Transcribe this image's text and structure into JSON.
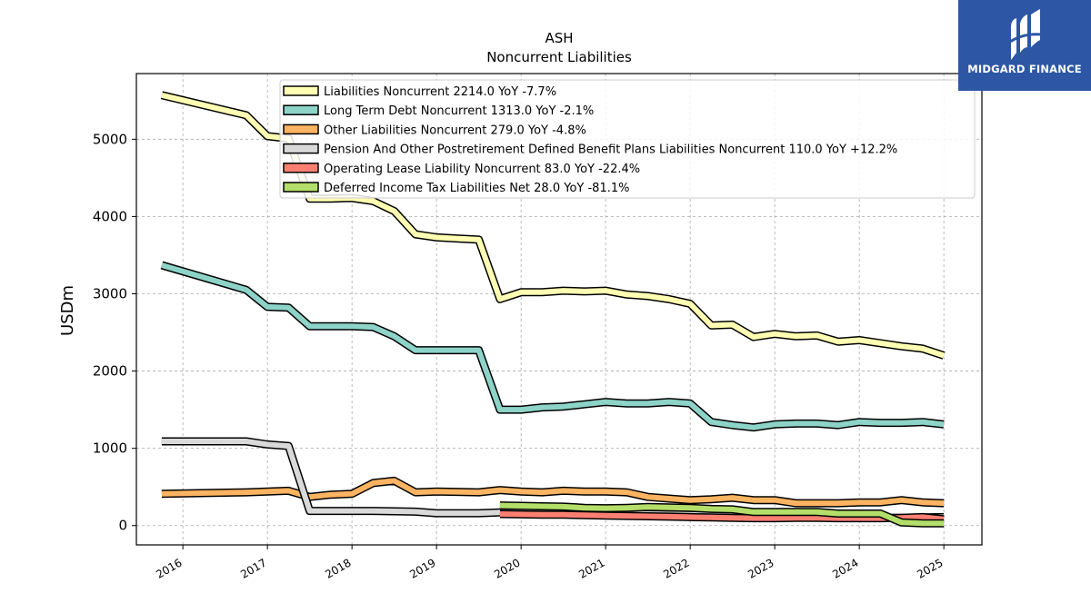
{
  "chart_data": {
    "type": "line",
    "title": "ASH",
    "subtitle": "Noncurrent  Liabilities",
    "ylabel": "USDm",
    "xlabel": "",
    "xlim": [
      2015.45,
      2025.45
    ],
    "ylim": [
      -250,
      5850
    ],
    "yticks": [
      0,
      1000,
      2000,
      3000,
      4000,
      5000
    ],
    "xticks": [
      2016,
      2017,
      2018,
      2019,
      2020,
      2021,
      2022,
      2023,
      2024,
      2025
    ],
    "grid": true,
    "legend_position": "top",
    "series": [
      {
        "name": "Liabilities Noncurrent  2214.0 YoY -7.7%",
        "color": "#ffffb3",
        "points": [
          [
            2015.75,
            5570
          ],
          [
            2016.75,
            5310
          ],
          [
            2017.0,
            5040
          ],
          [
            2017.25,
            5010
          ],
          [
            2017.5,
            4230
          ],
          [
            2017.75,
            4230
          ],
          [
            2018.0,
            4240
          ],
          [
            2018.25,
            4200
          ],
          [
            2018.5,
            4070
          ],
          [
            2018.75,
            3770
          ],
          [
            2019.0,
            3730
          ],
          [
            2019.5,
            3700
          ],
          [
            2019.75,
            2930
          ],
          [
            2020.0,
            3020
          ],
          [
            2020.25,
            3020
          ],
          [
            2020.5,
            3040
          ],
          [
            2020.75,
            3030
          ],
          [
            2021.0,
            3040
          ],
          [
            2021.25,
            2990
          ],
          [
            2021.5,
            2970
          ],
          [
            2021.75,
            2930
          ],
          [
            2022.0,
            2870
          ],
          [
            2022.25,
            2590
          ],
          [
            2022.5,
            2600
          ],
          [
            2022.75,
            2440
          ],
          [
            2023.0,
            2480
          ],
          [
            2023.25,
            2450
          ],
          [
            2023.5,
            2460
          ],
          [
            2023.75,
            2380
          ],
          [
            2024.0,
            2400
          ],
          [
            2024.25,
            2360
          ],
          [
            2024.5,
            2320
          ],
          [
            2024.75,
            2290
          ],
          [
            2025.0,
            2200
          ]
        ]
      },
      {
        "name": "Long Term Debt Noncurrent  1313.0 YoY -2.1%",
        "color": "#8dd3c7",
        "points": [
          [
            2015.75,
            3370
          ],
          [
            2016.75,
            3050
          ],
          [
            2017.0,
            2830
          ],
          [
            2017.25,
            2820
          ],
          [
            2017.5,
            2580
          ],
          [
            2017.75,
            2580
          ],
          [
            2018.0,
            2580
          ],
          [
            2018.25,
            2570
          ],
          [
            2018.5,
            2450
          ],
          [
            2018.75,
            2270
          ],
          [
            2019.0,
            2270
          ],
          [
            2019.5,
            2270
          ],
          [
            2019.75,
            1500
          ],
          [
            2020.0,
            1500
          ],
          [
            2020.25,
            1530
          ],
          [
            2020.5,
            1540
          ],
          [
            2020.75,
            1570
          ],
          [
            2021.0,
            1600
          ],
          [
            2021.25,
            1580
          ],
          [
            2021.5,
            1580
          ],
          [
            2021.75,
            1600
          ],
          [
            2022.0,
            1580
          ],
          [
            2022.25,
            1340
          ],
          [
            2022.5,
            1300
          ],
          [
            2022.75,
            1270
          ],
          [
            2023.0,
            1310
          ],
          [
            2023.25,
            1320
          ],
          [
            2023.5,
            1320
          ],
          [
            2023.75,
            1300
          ],
          [
            2024.0,
            1340
          ],
          [
            2024.25,
            1330
          ],
          [
            2024.5,
            1330
          ],
          [
            2024.75,
            1340
          ],
          [
            2025.0,
            1310
          ]
        ]
      },
      {
        "name": "Other Liabilities Noncurrent  279.0 YoY -4.8%",
        "color": "#fdb462",
        "points": [
          [
            2015.75,
            410
          ],
          [
            2016.75,
            430
          ],
          [
            2017.0,
            440
          ],
          [
            2017.25,
            450
          ],
          [
            2017.5,
            370
          ],
          [
            2017.75,
            400
          ],
          [
            2018.0,
            410
          ],
          [
            2018.25,
            550
          ],
          [
            2018.5,
            580
          ],
          [
            2018.75,
            430
          ],
          [
            2019.0,
            440
          ],
          [
            2019.5,
            430
          ],
          [
            2019.75,
            460
          ],
          [
            2020.0,
            440
          ],
          [
            2020.25,
            430
          ],
          [
            2020.5,
            450
          ],
          [
            2020.75,
            440
          ],
          [
            2021.0,
            440
          ],
          [
            2021.25,
            430
          ],
          [
            2021.5,
            370
          ],
          [
            2021.75,
            350
          ],
          [
            2022.0,
            330
          ],
          [
            2022.25,
            340
          ],
          [
            2022.5,
            360
          ],
          [
            2022.75,
            330
          ],
          [
            2023.0,
            330
          ],
          [
            2023.25,
            290
          ],
          [
            2023.5,
            290
          ],
          [
            2023.75,
            290
          ],
          [
            2024.0,
            300
          ],
          [
            2024.25,
            300
          ],
          [
            2024.5,
            330
          ],
          [
            2024.75,
            300
          ],
          [
            2025.0,
            290
          ]
        ]
      },
      {
        "name": "Pension And Other Postretirement Defined Benefit Plans Liabilities Noncurrent  110.0 YoY +12.2%",
        "color": "#d9d9d9",
        "points": [
          [
            2015.75,
            1090
          ],
          [
            2016.75,
            1090
          ],
          [
            2017.0,
            1050
          ],
          [
            2017.25,
            1030
          ],
          [
            2017.5,
            190
          ],
          [
            2017.75,
            190
          ],
          [
            2018.0,
            190
          ],
          [
            2018.25,
            190
          ],
          [
            2018.5,
            185
          ],
          [
            2018.75,
            180
          ],
          [
            2019.0,
            160
          ],
          [
            2019.5,
            160
          ],
          [
            2019.75,
            170
          ],
          [
            2020.0,
            170
          ],
          [
            2020.25,
            165
          ],
          [
            2020.5,
            165
          ],
          [
            2020.75,
            160
          ],
          [
            2021.0,
            155
          ],
          [
            2021.25,
            150
          ],
          [
            2021.5,
            150
          ],
          [
            2021.75,
            145
          ],
          [
            2022.0,
            140
          ],
          [
            2022.25,
            140
          ],
          [
            2022.5,
            140
          ],
          [
            2022.75,
            130
          ],
          [
            2023.0,
            120
          ],
          [
            2023.25,
            120
          ],
          [
            2023.5,
            120
          ],
          [
            2023.75,
            110
          ],
          [
            2024.0,
            105
          ],
          [
            2024.25,
            100
          ],
          [
            2024.5,
            100
          ],
          [
            2024.75,
            105
          ],
          [
            2025.0,
            110
          ]
        ]
      },
      {
        "name": "Operating Lease Liability Noncurrent  83.0 YoY -22.4%",
        "color": "#fb8072",
        "points": [
          [
            2019.75,
            150
          ],
          [
            2020.0,
            145
          ],
          [
            2020.25,
            140
          ],
          [
            2020.5,
            140
          ],
          [
            2020.75,
            135
          ],
          [
            2021.0,
            130
          ],
          [
            2021.25,
            125
          ],
          [
            2021.5,
            120
          ],
          [
            2021.75,
            115
          ],
          [
            2022.0,
            110
          ],
          [
            2022.25,
            105
          ],
          [
            2022.5,
            100
          ],
          [
            2022.75,
            95
          ],
          [
            2023.0,
            95
          ],
          [
            2023.25,
            100
          ],
          [
            2023.5,
            100
          ],
          [
            2023.75,
            95
          ],
          [
            2024.0,
            95
          ],
          [
            2024.25,
            95
          ],
          [
            2024.5,
            100
          ],
          [
            2024.75,
            110
          ],
          [
            2025.0,
            83
          ]
        ]
      },
      {
        "name": "Deferred Income Tax Liabilities Net  28.0 YoY -81.1%",
        "color": "#b3de69",
        "points": [
          [
            2019.75,
            260
          ],
          [
            2020.0,
            255
          ],
          [
            2020.25,
            250
          ],
          [
            2020.5,
            245
          ],
          [
            2020.75,
            230
          ],
          [
            2021.0,
            225
          ],
          [
            2021.25,
            230
          ],
          [
            2021.5,
            240
          ],
          [
            2021.75,
            235
          ],
          [
            2022.0,
            230
          ],
          [
            2022.25,
            215
          ],
          [
            2022.5,
            210
          ],
          [
            2022.75,
            175
          ],
          [
            2023.0,
            175
          ],
          [
            2023.25,
            175
          ],
          [
            2023.5,
            175
          ],
          [
            2023.75,
            155
          ],
          [
            2024.0,
            155
          ],
          [
            2024.25,
            155
          ],
          [
            2024.5,
            40
          ],
          [
            2024.75,
            30
          ],
          [
            2025.0,
            28
          ]
        ]
      }
    ]
  },
  "logo": {
    "text": "MIDGARD FINANCE",
    "icon": "midgard-logo-icon"
  }
}
